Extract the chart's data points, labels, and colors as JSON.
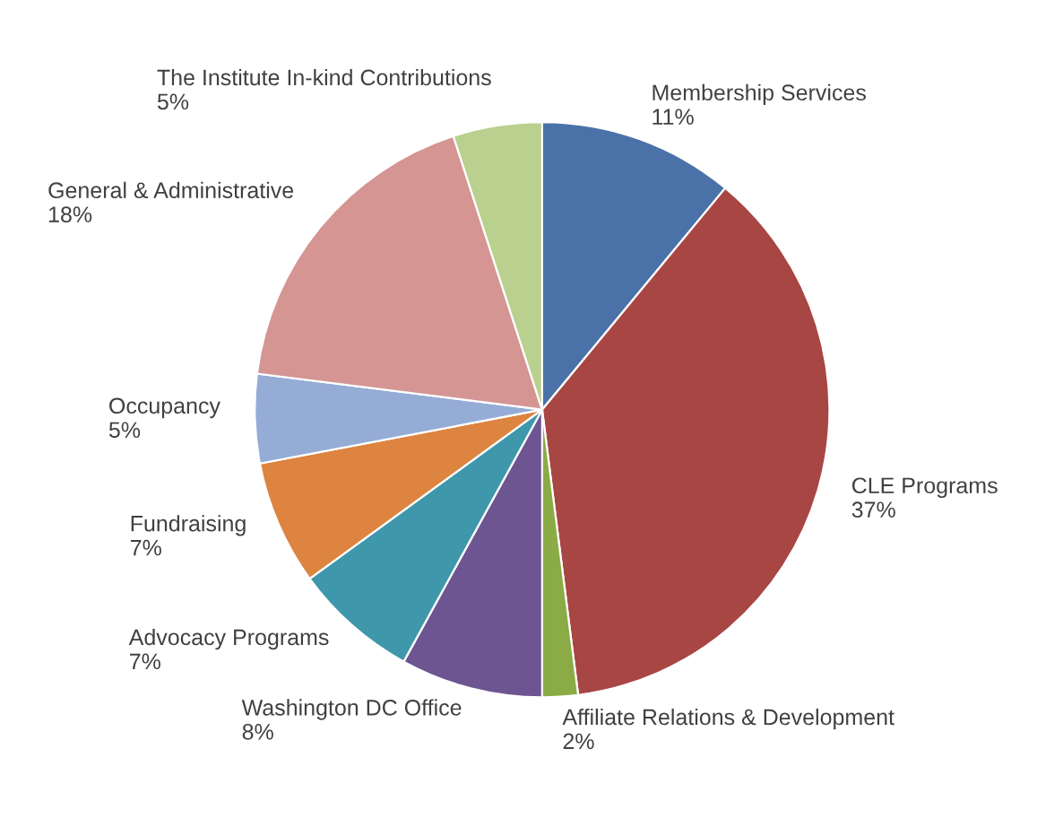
{
  "chart_data": {
    "type": "pie",
    "categories": [
      "Membership Services",
      "CLE Programs",
      "Affiliate Relations & Development",
      "Washington DC Office",
      "Advocacy Programs",
      "Fundraising",
      "Occupancy",
      "General & Administrative",
      "The Institute In-kind Contributions"
    ],
    "values": [
      11,
      37,
      2,
      8,
      7,
      7,
      5,
      18,
      5
    ],
    "value_labels": [
      "11%",
      "37%",
      "2%",
      "8%",
      "7%",
      "7%",
      "5%",
      "18%",
      "5%"
    ],
    "colors": [
      "#4a72a8",
      "#a84644",
      "#8aab45",
      "#6d5591",
      "#3f97ab",
      "#dc8440",
      "#94acd6",
      "#d49593",
      "#b9d08f"
    ]
  }
}
